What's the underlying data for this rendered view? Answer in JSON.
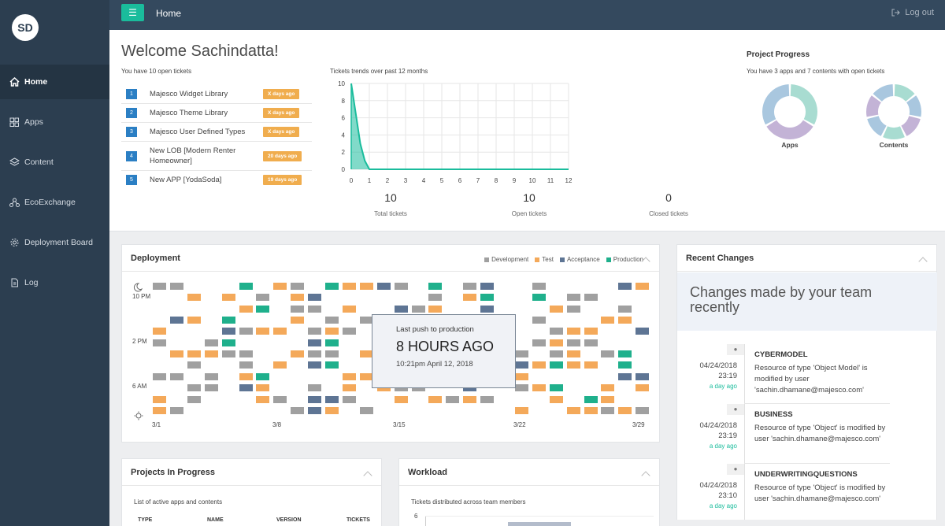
{
  "sidebar": {
    "avatar": "SD",
    "items": [
      {
        "label": "Home",
        "icon": "home-icon",
        "active": true
      },
      {
        "label": "Apps",
        "icon": "grid-icon"
      },
      {
        "label": "Content",
        "icon": "layers-icon"
      },
      {
        "label": "EcoExchange",
        "icon": "network-icon"
      },
      {
        "label": "Deployment Board",
        "icon": "gear-icon"
      },
      {
        "label": "Log",
        "icon": "file-icon"
      }
    ]
  },
  "topbar": {
    "menu_icon": "hamburger-icon",
    "title": "Home",
    "logout": "Log out"
  },
  "welcome": {
    "title": "Welcome Sachindatta!",
    "open_tickets_text": "You have 10 open tickets"
  },
  "tickets": [
    {
      "num": "1",
      "title": "Majesco Widget Library",
      "age": "X days ago"
    },
    {
      "num": "2",
      "title": "Majesco Theme Library",
      "age": "X days ago"
    },
    {
      "num": "3",
      "title": "Majesco User Defined Types",
      "age": "X days ago"
    },
    {
      "num": "4",
      "title": "New LOB [Modern Renter Homeowner]",
      "age": "20 days ago"
    },
    {
      "num": "5",
      "title": "New APP [YodaSoda]",
      "age": "19 days ago"
    }
  ],
  "trend": {
    "title": "Tickets trends over past 12 months"
  },
  "chart_data": {
    "type": "area",
    "title": "Tickets trends over past 12 months",
    "x": [
      0,
      0.25,
      0.5,
      0.75,
      1,
      2,
      3,
      4,
      5,
      6,
      7,
      8,
      9,
      10,
      11,
      12
    ],
    "values": [
      10,
      6.5,
      3,
      1,
      0,
      0,
      0,
      0,
      0,
      0,
      0,
      0,
      0,
      0,
      0,
      0
    ],
    "xlim": [
      0,
      12
    ],
    "ylim": [
      0,
      10
    ],
    "xticks": [
      "0",
      "1",
      "2",
      "3",
      "4",
      "5",
      "6",
      "7",
      "8",
      "9",
      "10",
      "11",
      "12"
    ],
    "yticks": [
      "0",
      "2",
      "4",
      "6",
      "8",
      "10"
    ],
    "grid": true,
    "color": "#1abc9c"
  },
  "stats": [
    {
      "value": "10",
      "label": "Total tickets"
    },
    {
      "value": "10",
      "label": "Open tickets"
    },
    {
      "value": "0",
      "label": "Closed tickets"
    }
  ],
  "progress": {
    "title": "Project Progress",
    "subtitle": "You have 3 apps and 7 contents with open tickets",
    "apps_label": "Apps",
    "contents_label": "Contents",
    "apps_colors": [
      "#a8dcd1",
      "#c3b3d6",
      "#a9c7df"
    ],
    "contents_colors": [
      "#a8dcd1",
      "#a9c7df",
      "#c3b3d6",
      "#a8dcd1",
      "#a9c7df",
      "#c3b3d6",
      "#a9c7df"
    ]
  },
  "deployment": {
    "title": "Deployment",
    "legend": [
      {
        "label": "Development",
        "color": "#a0a0a0"
      },
      {
        "label": "Test",
        "color": "#f4a95a"
      },
      {
        "label": "Acceptance",
        "color": "#5e7594"
      },
      {
        "label": "Production",
        "color": "#1fb08c"
      }
    ],
    "y_labels": [
      "10 PM",
      "2 PM",
      "6 AM"
    ],
    "x_labels": [
      "3/1",
      "3/8",
      "3/15",
      "3/22",
      "3/29"
    ],
    "moon_icon": "moon-icon",
    "sun_icon": "sun-icon",
    "popup": {
      "line1": "Last push to production",
      "line2": "8 HOURS AGO",
      "line3": "10:21pm April 12, 2018"
    }
  },
  "recent": {
    "title": "Recent Changes",
    "banner": "Changes made by your team recently",
    "items": [
      {
        "date": "04/24/2018",
        "time": "23:19",
        "ago": "a day ago",
        "name": "CYBERMODEL",
        "desc": "Resource of type 'Object Model' is modified by user 'sachin.dhamane@majesco.com'"
      },
      {
        "date": "04/24/2018",
        "time": "23:19",
        "ago": "a day ago",
        "name": "BUSINESS",
        "desc": "Resource of type 'Object' is modified by user 'sachin.dhamane@majesco.com'"
      },
      {
        "date": "04/24/2018",
        "time": "23:10",
        "ago": "a day ago",
        "name": "UNDERWRITINGQUESTIONS",
        "desc": "Resource of type 'Object' is modified by user 'sachin.dhamane@majesco.com'"
      }
    ]
  },
  "projects": {
    "title": "Projects In Progress",
    "subtitle": "List of active apps and contents",
    "columns": [
      "TYPE",
      "NAME",
      "VERSION",
      "TICKETS"
    ]
  },
  "workload": {
    "title": "Workload",
    "subtitle": "Tickets distributed across team members",
    "y_first": "6"
  }
}
